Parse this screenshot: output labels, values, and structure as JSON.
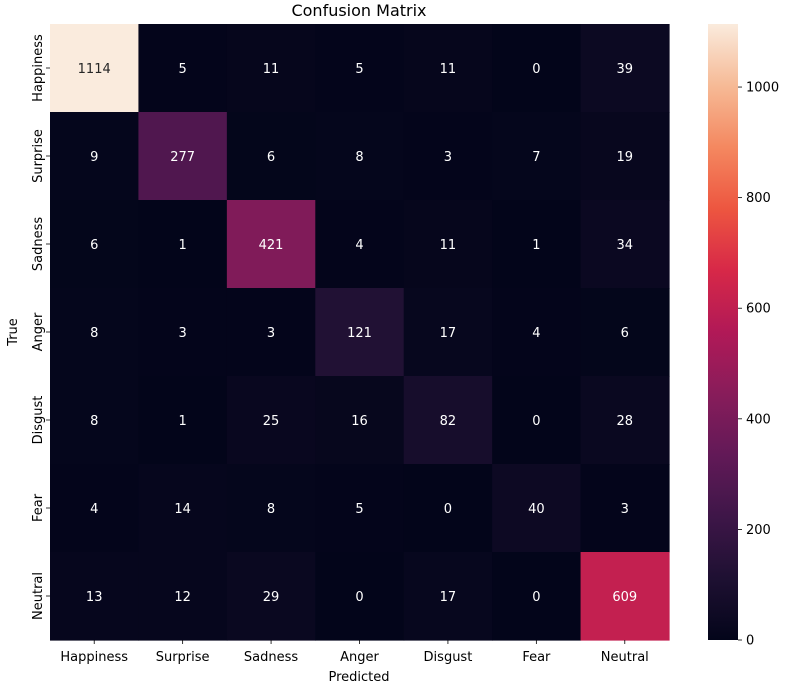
{
  "chart_data": {
    "type": "heatmap",
    "title": "Confusion Matrix",
    "xlabel": "Predicted",
    "ylabel": "True",
    "x_categories": [
      "Happiness",
      "Surprise",
      "Sadness",
      "Anger",
      "Disgust",
      "Fear",
      "Neutral"
    ],
    "y_categories": [
      "Happiness",
      "Surprise",
      "Sadness",
      "Anger",
      "Disgust",
      "Fear",
      "Neutral"
    ],
    "values": [
      [
        1114,
        5,
        11,
        5,
        11,
        0,
        39
      ],
      [
        9,
        277,
        6,
        8,
        3,
        7,
        19
      ],
      [
        6,
        1,
        421,
        4,
        11,
        1,
        34
      ],
      [
        8,
        3,
        3,
        121,
        17,
        4,
        6
      ],
      [
        8,
        1,
        25,
        16,
        82,
        0,
        28
      ],
      [
        4,
        14,
        8,
        5,
        0,
        40,
        3
      ],
      [
        13,
        12,
        29,
        0,
        17,
        0,
        609
      ]
    ],
    "colorbar": {
      "colormap": "rocket",
      "vmin": 0,
      "vmax": 1114,
      "ticks": [
        0,
        200,
        400,
        600,
        800,
        1000
      ]
    }
  }
}
